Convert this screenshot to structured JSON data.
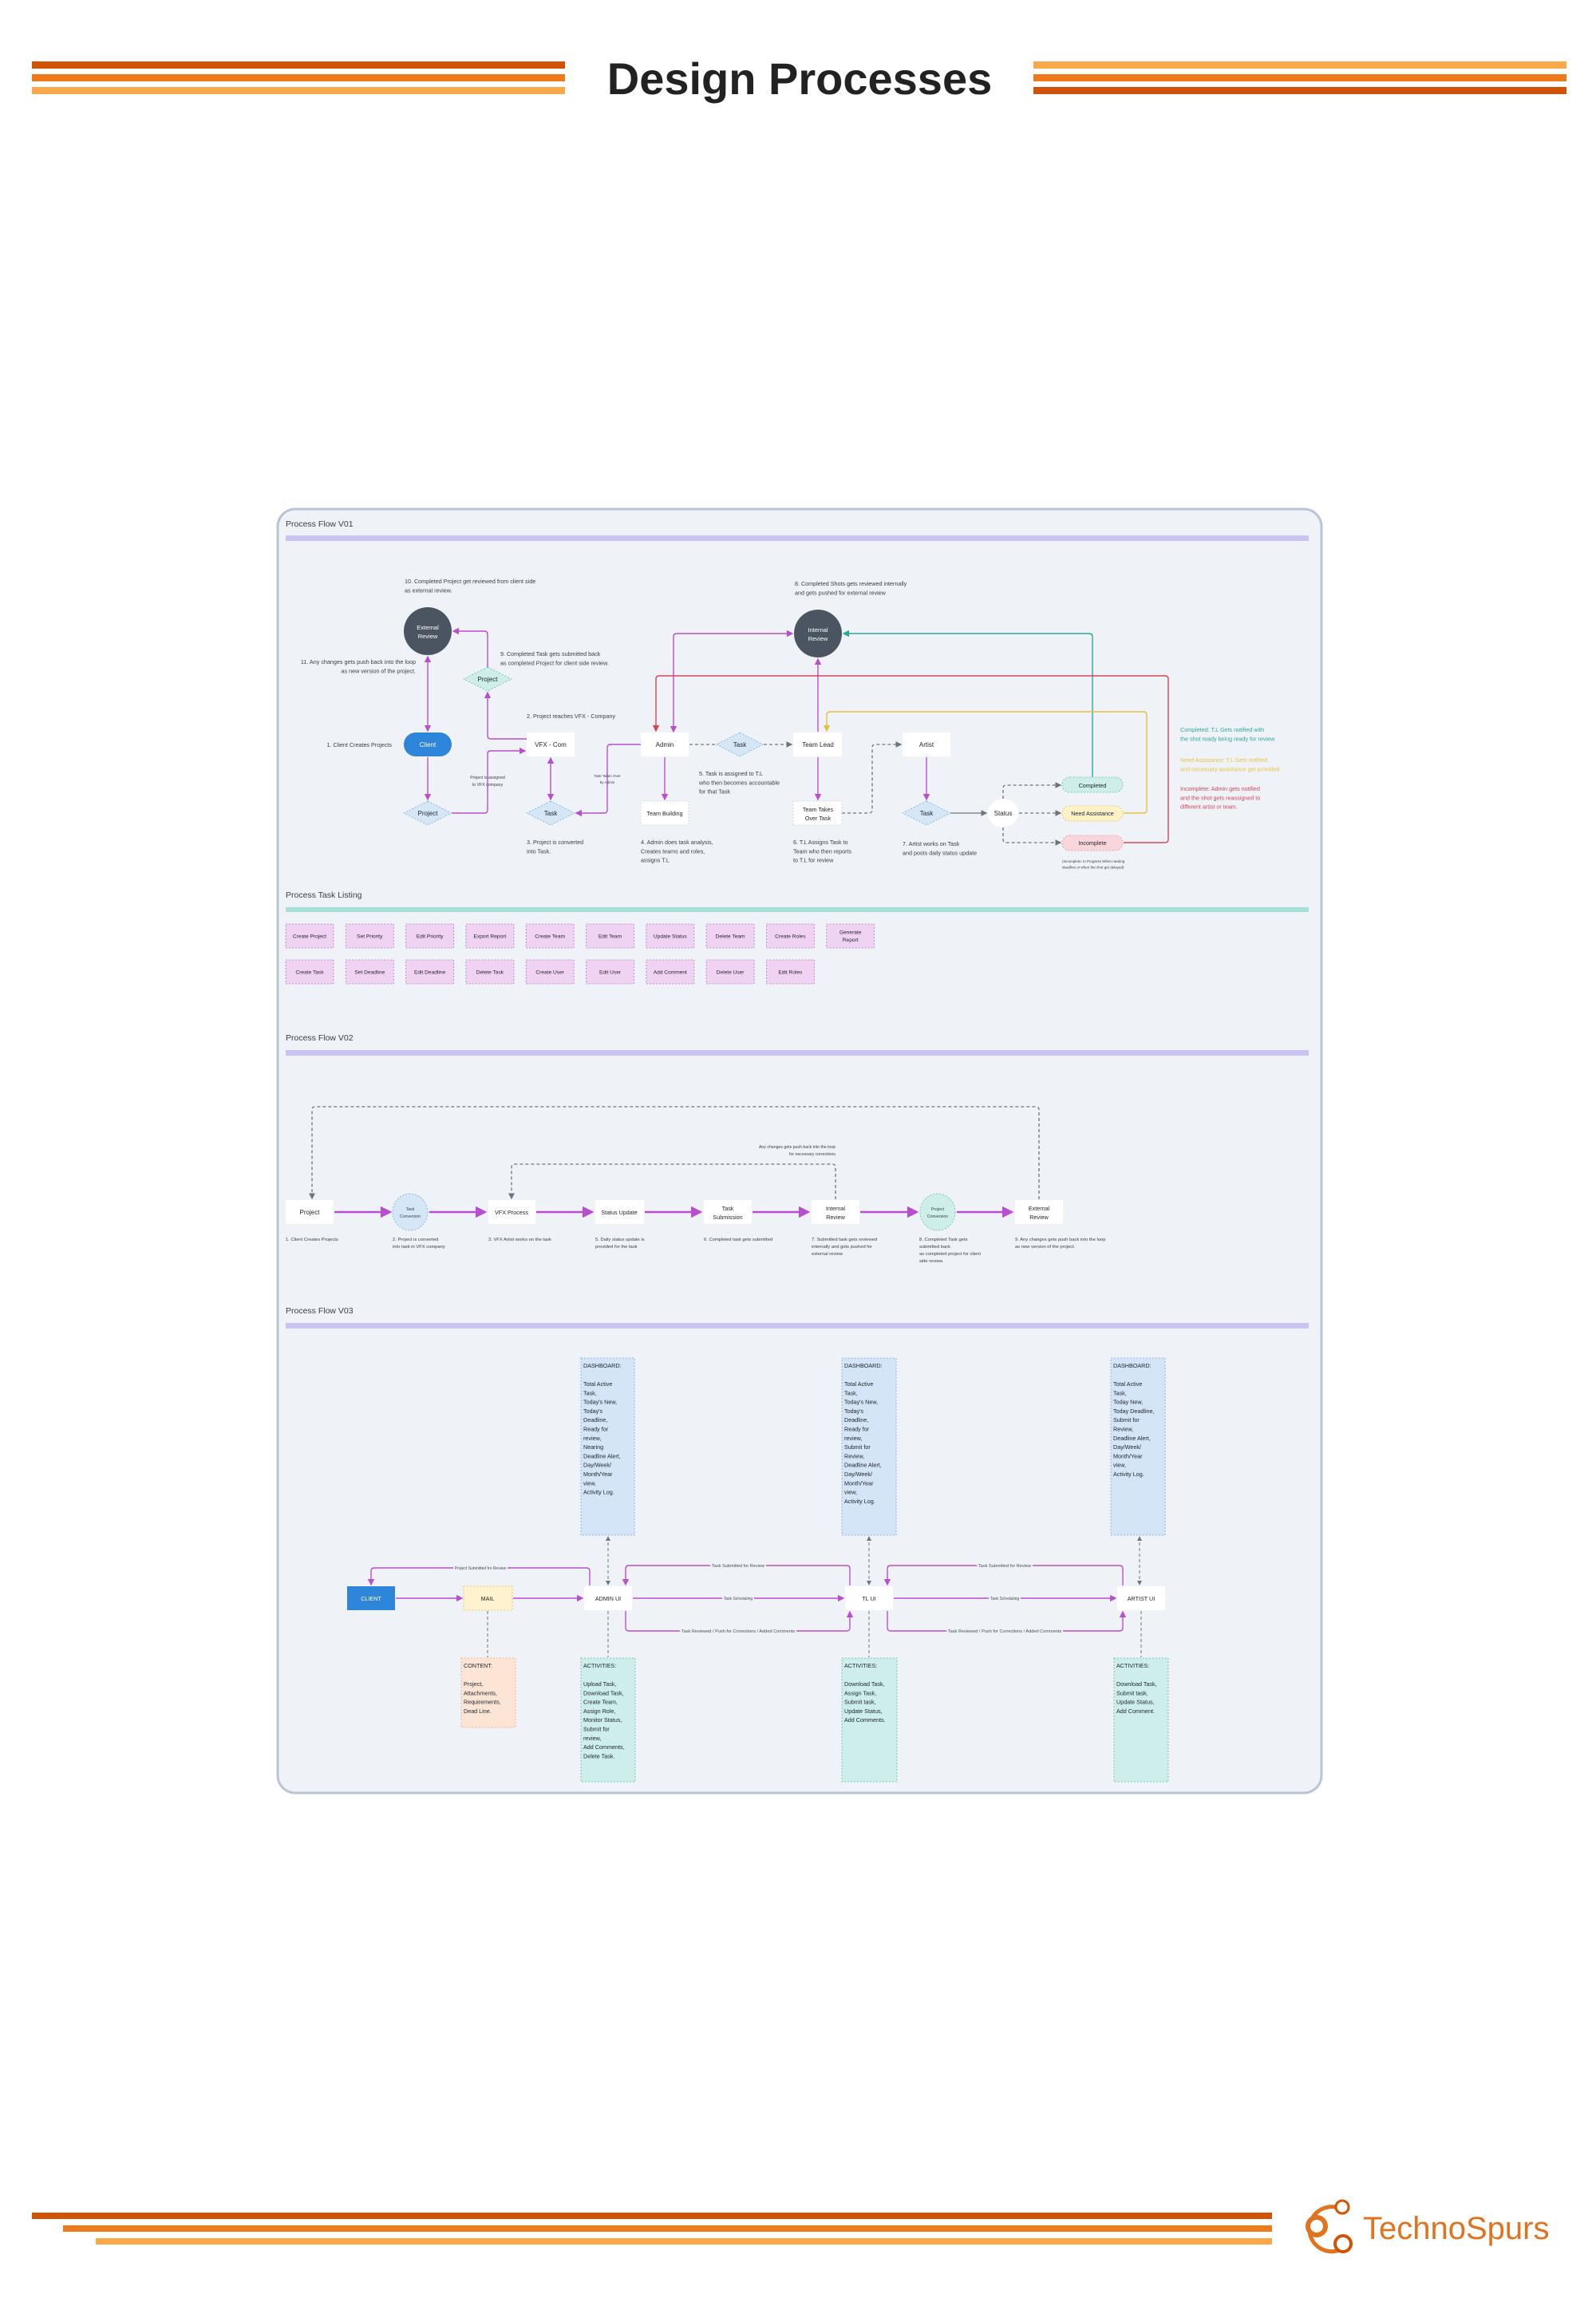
{
  "header": {
    "title": "Design Processes"
  },
  "colors": {
    "stripe_dark": "#d15406",
    "stripe_mid": "#ee7a1c",
    "stripe_light": "#fba84a",
    "flow_line": "#b84fd0",
    "review_circle": "#4a5561",
    "client_blue": "#2d86d9",
    "completed": "#2aa89a",
    "need_assistance": "#e8bf45",
    "incomplete": "#d2465a",
    "brand": "#e0731f"
  },
  "v01": {
    "title": "Process Flow V01",
    "nodes": {
      "external_review": [
        "External",
        "Review"
      ],
      "internal_review": [
        "Internal",
        "Review"
      ],
      "client": "Client",
      "vfx": "VFX - Com",
      "admin": "Admin",
      "team_lead": "Team Lead",
      "artist": "Artist",
      "project_top": "Project",
      "project_bottom": "Project",
      "task_vfx": "Task",
      "task_admin": "Task",
      "task_artist": "Task",
      "team_building": "Team Building",
      "team_takes": [
        "Team Takes",
        "Over Task"
      ],
      "status": "Status",
      "completed": "Completed",
      "need_assistance": "Need Assistance",
      "incomplete": "Incomplete"
    },
    "notes": {
      "n1": [
        "1. Client Creates Projects"
      ],
      "n2": [
        "2. Project reaches VFX - Company"
      ],
      "n3": [
        "3. Project is converted",
        "into Task."
      ],
      "n4": [
        "4. Admin does task analysis,",
        "Creates teams and roles,",
        "assigns T.L"
      ],
      "n5": [
        "5. Task is assigned to T.L",
        "who then becomes accountable",
        "for that Task"
      ],
      "n6": [
        "6. T.L Assigns Task to",
        "Team who then reports",
        "to T.L for review"
      ],
      "n7": [
        "7. Artist works on Task",
        "and posts daily status update"
      ],
      "n8": [
        "8. Completed Shots gets reviewed internally",
        "and gets pushed for external review"
      ],
      "n9": [
        "9. Completed Task gets submitted back",
        "as completed Project for client side review."
      ],
      "n10": [
        "10. Completed Project get reviewed from client side",
        "as external review."
      ],
      "n11": [
        "11. Any changes gets push back into the loop",
        "as new version of the project."
      ]
    },
    "edge_labels": {
      "assigned": [
        "Project is assigned",
        "to VFX company"
      ],
      "taken_over": [
        "Task Taken Over",
        "by Admin"
      ]
    },
    "incomplete_note": [
      "(Incomplete: In Progress When nearing",
      "deadline or when the shot get delayed)"
    ],
    "legend": {
      "completed": [
        "Completed: T.L Gets notified with",
        "the shot ready being ready for review"
      ],
      "need_assistance": [
        "Need Assistance: T.L Gets notified",
        "and necessary assistance get provided"
      ],
      "incomplete": [
        "Incomplete: Admin gets notified",
        "and the shot gets reassigned to",
        "different artist or team."
      ]
    }
  },
  "tasks": {
    "title": "Process Task Listing",
    "rows": [
      [
        [
          "Create Project"
        ],
        [
          "Set Priority"
        ],
        [
          "Edit Priority"
        ],
        [
          "Export Report"
        ],
        [
          "Create Team"
        ],
        [
          "Edit Team"
        ],
        [
          "Update Status"
        ],
        [
          "Delete Team"
        ],
        [
          "Create Roles"
        ],
        [
          "Generate",
          "Report"
        ]
      ],
      [
        [
          "Create Task"
        ],
        [
          "Set Deadline"
        ],
        [
          "Edit Deadline"
        ],
        [
          "Delete Task"
        ],
        [
          "Create User"
        ],
        [
          "Edit User"
        ],
        [
          "Add Comment"
        ],
        [
          "Delete User"
        ],
        [
          "Edit Roles"
        ]
      ]
    ]
  },
  "v02": {
    "title": "Process Flow V02",
    "nodes": {
      "project": "Project",
      "task_conversion": [
        "Task",
        "Conversion"
      ],
      "vfx_process": "VFX Process",
      "status_update": "Status Update",
      "task_submission": [
        "Task",
        "Submission"
      ],
      "internal_review": [
        "Internal",
        "Review"
      ],
      "project_conversion": [
        "Project",
        "Conversion"
      ],
      "external_review": [
        "External",
        "Review"
      ]
    },
    "captions": {
      "c1": [
        "1. Client Creates Projects"
      ],
      "c2": [
        "2. Project is converted",
        "into task in VFX company"
      ],
      "c3": [
        "3. VFX Artist works on the task"
      ],
      "c5": [
        "5. Daily status update is",
        "provided for the task"
      ],
      "c6": [
        "6. Completed task gets submitted"
      ],
      "c7": [
        "7. Submitted task gets reviewed",
        "internally and gets pushed for",
        "external review"
      ],
      "c8": [
        "8. Completed Task gets",
        "submitted back",
        "as completed project for client",
        "side review."
      ],
      "c9": [
        "9. Any changes gets push back into the loop",
        "as new version of the project."
      ]
    },
    "loop_note": [
      "Any changes gets push back into the loop",
      "for  necessary corrections"
    ]
  },
  "v03": {
    "title": "Process Flow V03",
    "nodes": {
      "client": "CLIENT",
      "mail": "MAIL",
      "admin_ui": "ADMIN UI",
      "tl_ui": "TL UI",
      "artist_ui": "ARTIST UI"
    },
    "edge_labels": {
      "project_submitted": "Project Submitted for Review",
      "task_submitted": "Task Submitted for Review",
      "task_scheduling": "Task Scheduling",
      "task_reviewed": "Task Reviewed / Push for Corrections / Added Comments"
    },
    "dashboard_heading": "DASHBOARD:",
    "activities_heading": "ACTIVITIES:",
    "content_heading": "CONTENT:",
    "admin_dashboard": [
      "Total Active",
      "Task,",
      "Today's New,",
      "Today's",
      "Deadline,",
      "Ready for",
      "review,",
      "Nearing",
      "Deadline Alert,",
      "Day/Week/",
      "Month/Year",
      "view,",
      "Activity Log."
    ],
    "tl_dashboard": [
      "Total Active",
      "Task,",
      "Today's New,",
      "Today's",
      "Deadline,",
      "Ready for",
      "review,",
      "Submit for",
      "Review,",
      "Deadline Alert,",
      "Day/Week/",
      "Month/Year",
      "view,",
      "Activity Log."
    ],
    "artist_dashboard": [
      "Total Active",
      "Task,",
      "Today New,",
      "Today Deadline,",
      "Submit for",
      "Review,",
      "Deadline Alert,",
      "Day/Week/",
      "Month/Year",
      "view,",
      "Activity Log."
    ],
    "mail_content": [
      "Project,",
      "Attachments,",
      "Requirements,",
      "Dead Line."
    ],
    "admin_activities": [
      "Upload Task,",
      "Download Task,",
      "Create Team,",
      "Assign Role,",
      "Monitor Status,",
      "Submit for",
      "review,",
      "Add Comments,",
      "Delete Task."
    ],
    "tl_activities": [
      "Download Task,",
      "Assign Task,",
      "Submit task,",
      "Update Status,",
      "Add Comments."
    ],
    "artist_activities": [
      "Download Task,",
      "Submit task,",
      "Update Status,",
      "Add Comment."
    ]
  },
  "footer": {
    "brand": "TechnoSpurs"
  }
}
